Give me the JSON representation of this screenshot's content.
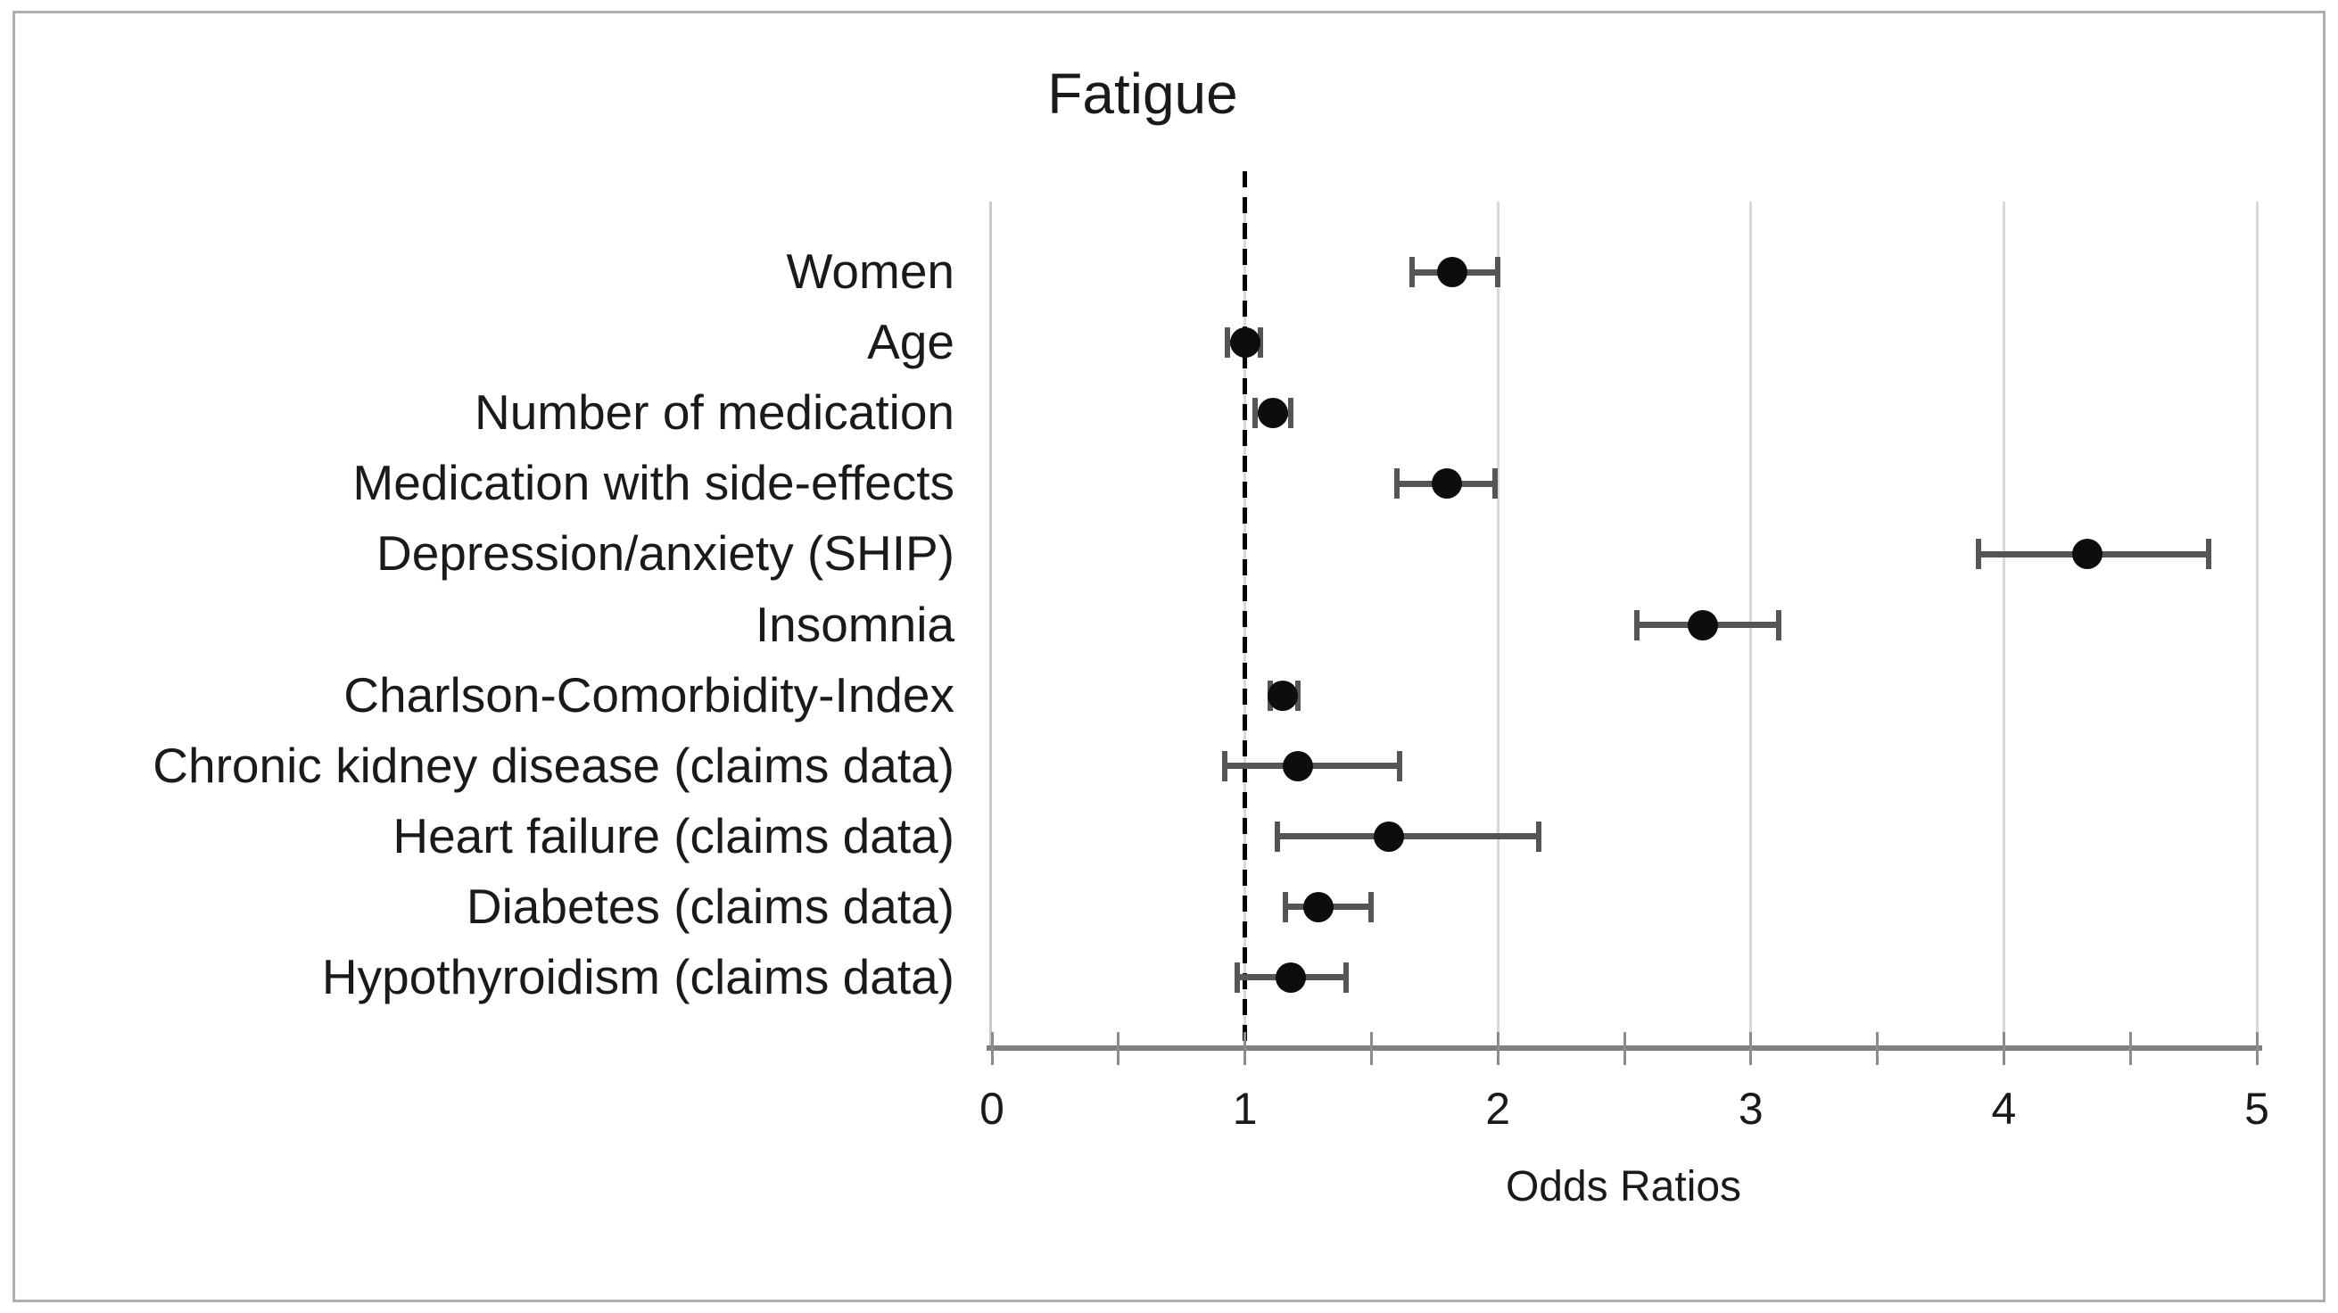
{
  "figure": {
    "title": "Fatigue"
  },
  "chart_data": {
    "type": "scatter",
    "subtype": "forest-plot",
    "title": "Fatigue",
    "xlabel": "Odds Ratios",
    "xlim": [
      0,
      5
    ],
    "x_major_ticks": [
      0,
      1,
      2,
      3,
      4,
      5
    ],
    "x_minor_tick_step": 0.5,
    "gridlines_at": [
      1,
      2,
      3,
      4,
      5
    ],
    "reference_line_x": 1,
    "grid": "vertical light gray gridlines at integer values",
    "legend": "none",
    "categories": [
      "Women",
      "Age",
      "Number of medication",
      "Medication with side-effects",
      "Depression/anxiety (SHIP)",
      "Insomnia",
      "Charlson-Comorbidity-Index",
      "Chronic kidney disease (claims data)",
      "Heart failure (claims data)",
      "Diabetes (claims data)",
      "Hypothyroidism (claims data)"
    ],
    "series": [
      {
        "name": "Odds Ratios",
        "points": [
          {
            "category": "Women",
            "or": 1.82,
            "ci_low": 1.66,
            "ci_high": 2.0
          },
          {
            "category": "Age",
            "or": 1.0,
            "ci_low": 0.93,
            "ci_high": 1.06
          },
          {
            "category": "Number of medication",
            "or": 1.11,
            "ci_low": 1.04,
            "ci_high": 1.18
          },
          {
            "category": "Medication with side-effects",
            "or": 1.8,
            "ci_low": 1.6,
            "ci_high": 1.99
          },
          {
            "category": "Depression/anxiety (SHIP)",
            "or": 4.33,
            "ci_low": 3.9,
            "ci_high": 4.81
          },
          {
            "category": "Insomnia",
            "or": 2.81,
            "ci_low": 2.55,
            "ci_high": 3.11
          },
          {
            "category": "Charlson-Comorbidity-Index",
            "or": 1.15,
            "ci_low": 1.1,
            "ci_high": 1.21
          },
          {
            "category": "Chronic kidney disease (claims data)",
            "or": 1.21,
            "ci_low": 0.92,
            "ci_high": 1.61
          },
          {
            "category": "Heart failure (claims data)",
            "or": 1.57,
            "ci_low": 1.13,
            "ci_high": 2.16
          },
          {
            "category": "Diabetes (claims data)",
            "or": 1.29,
            "ci_low": 1.16,
            "ci_high": 1.5
          },
          {
            "category": "Hypothyroidism (claims data)",
            "or": 1.18,
            "ci_low": 0.97,
            "ci_high": 1.4
          }
        ]
      }
    ],
    "marker": {
      "shape": "circle",
      "color": "#0d0d0d"
    },
    "colors": {
      "marker": "#0d0d0d",
      "error_bar": "#555555",
      "x_axis": "#808080",
      "gridline": "#d9d9d9",
      "reference_line": "#000000",
      "figure_border": "#aeaeae",
      "text": "#1a1a1a"
    }
  }
}
